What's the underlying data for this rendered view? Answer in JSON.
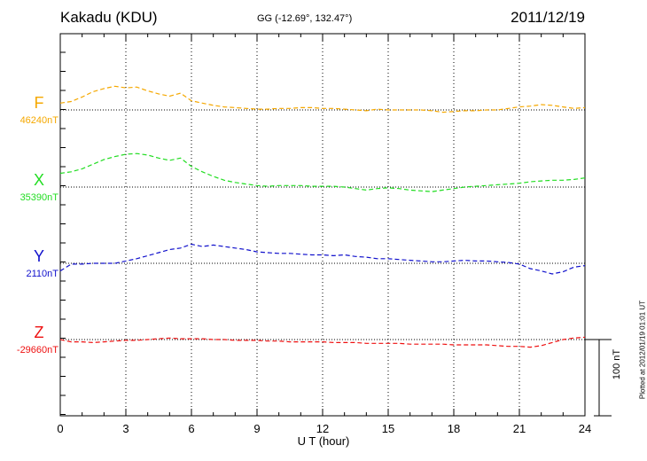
{
  "header": {
    "station": "Kakadu (KDU)",
    "coords": "GG (-12.69°, 132.47°)",
    "date": "2011/12/19"
  },
  "footer": {
    "plotted": "Plotted at 2012/01/19 01:01 UT",
    "scale_label": "100 nT"
  },
  "chart_data": {
    "type": "line",
    "title": "Kakadu (KDU)",
    "xlabel": "U T (hour)",
    "ylabel": "",
    "xlim": [
      0,
      24
    ],
    "xticks": [
      "0",
      "3",
      "6",
      "9",
      "12",
      "15",
      "18",
      "21",
      "24"
    ],
    "scale_bar_nT": 100,
    "grid": true,
    "series": [
      {
        "name": "F",
        "baseline": "46240nT",
        "color": "#f5a800",
        "x": [
          0,
          0.5,
          1,
          1.5,
          2,
          2.5,
          3,
          3.5,
          4,
          4.5,
          5,
          5.5,
          6,
          6.5,
          7,
          7.5,
          8,
          8.5,
          9,
          9.5,
          10,
          10.5,
          11,
          11.5,
          12,
          12.5,
          13,
          13.5,
          14,
          14.5,
          15,
          15.5,
          16,
          16.5,
          17,
          17.5,
          18,
          18.5,
          19,
          19.5,
          20,
          20.5,
          21,
          21.5,
          22,
          22.5,
          23,
          23.5,
          24
        ],
        "y": [
          9,
          11,
          17,
          24,
          28,
          31,
          29,
          30,
          25,
          21,
          18,
          22,
          12,
          9,
          6,
          4,
          3,
          2,
          1,
          1,
          2,
          2,
          3,
          3,
          2,
          2,
          1,
          0,
          -1,
          1,
          0,
          0,
          0,
          0,
          -1,
          -3,
          -2,
          -1,
          -1,
          0,
          0,
          2,
          4,
          5,
          7,
          6,
          4,
          2,
          3
        ]
      },
      {
        "name": "X",
        "baseline": "35390nT",
        "color": "#22dd22",
        "x": [
          0,
          0.5,
          1,
          1.5,
          2,
          2.5,
          3,
          3.5,
          4,
          4.5,
          5,
          5.5,
          6,
          6.5,
          7,
          7.5,
          8,
          8.5,
          9,
          9.5,
          10,
          10.5,
          11,
          11.5,
          12,
          12.5,
          13,
          13.5,
          14,
          14.5,
          15,
          15.5,
          16,
          16.5,
          17,
          17.5,
          18,
          18.5,
          19,
          19.5,
          20,
          20.5,
          21,
          21.5,
          22,
          22.5,
          23,
          23.5,
          24
        ],
        "y": [
          18,
          20,
          24,
          30,
          36,
          40,
          43,
          44,
          42,
          38,
          35,
          38,
          27,
          20,
          14,
          9,
          6,
          4,
          2,
          1,
          2,
          2,
          2,
          1,
          1,
          1,
          0,
          -2,
          -4,
          -2,
          -1,
          -2,
          -4,
          -5,
          -6,
          -4,
          -2,
          0,
          1,
          2,
          3,
          4,
          5,
          7,
          8,
          9,
          9,
          10,
          12
        ]
      },
      {
        "name": "Y",
        "baseline": "2110nT",
        "color": "#1111cc",
        "x": [
          0,
          0.5,
          1,
          1.5,
          2,
          2.5,
          3,
          3.5,
          4,
          4.5,
          5,
          5.5,
          6,
          6.5,
          7,
          7.5,
          8,
          8.5,
          9,
          9.5,
          10,
          10.5,
          11,
          11.5,
          12,
          12.5,
          13,
          13.5,
          14,
          14.5,
          15,
          15.5,
          16,
          16.5,
          17,
          17.5,
          18,
          18.5,
          19,
          19.5,
          20,
          20.5,
          21,
          21.5,
          22,
          22.5,
          23,
          23.5,
          24
        ],
        "y": [
          -10,
          -1,
          -1,
          0,
          0,
          0,
          3,
          6,
          10,
          14,
          18,
          20,
          25,
          22,
          24,
          22,
          20,
          18,
          15,
          14,
          13,
          13,
          12,
          11,
          11,
          10,
          11,
          9,
          8,
          6,
          6,
          5,
          4,
          3,
          2,
          2,
          3,
          4,
          3,
          3,
          2,
          1,
          -1,
          -7,
          -10,
          -14,
          -11,
          -5,
          -3
        ]
      },
      {
        "name": "Z",
        "baseline": "-29660nT",
        "color": "#ee1111",
        "x": [
          0,
          0.5,
          1,
          1.5,
          2,
          2.5,
          3,
          3.5,
          4,
          4.5,
          5,
          5.5,
          6,
          6.5,
          7,
          7.5,
          8,
          8.5,
          9,
          9.5,
          10,
          10.5,
          11,
          11.5,
          12,
          12.5,
          13,
          13.5,
          14,
          14.5,
          15,
          15.5,
          16,
          16.5,
          17,
          17.5,
          18,
          18.5,
          19,
          19.5,
          20,
          20.5,
          21,
          21.5,
          22,
          22.5,
          23,
          23.5,
          24
        ],
        "y": [
          0,
          -3,
          -3,
          -4,
          -3,
          -2,
          -1,
          -1,
          0,
          1,
          2,
          1,
          1,
          1,
          0,
          0,
          -1,
          -1,
          -1,
          -2,
          -2,
          -3,
          -3,
          -3,
          -3,
          -4,
          -4,
          -4,
          -5,
          -5,
          -5,
          -5,
          -6,
          -6,
          -6,
          -6,
          -7,
          -7,
          -7,
          -7,
          -8,
          -9,
          -9,
          -10,
          -8,
          -4,
          0,
          2,
          3
        ]
      }
    ]
  }
}
